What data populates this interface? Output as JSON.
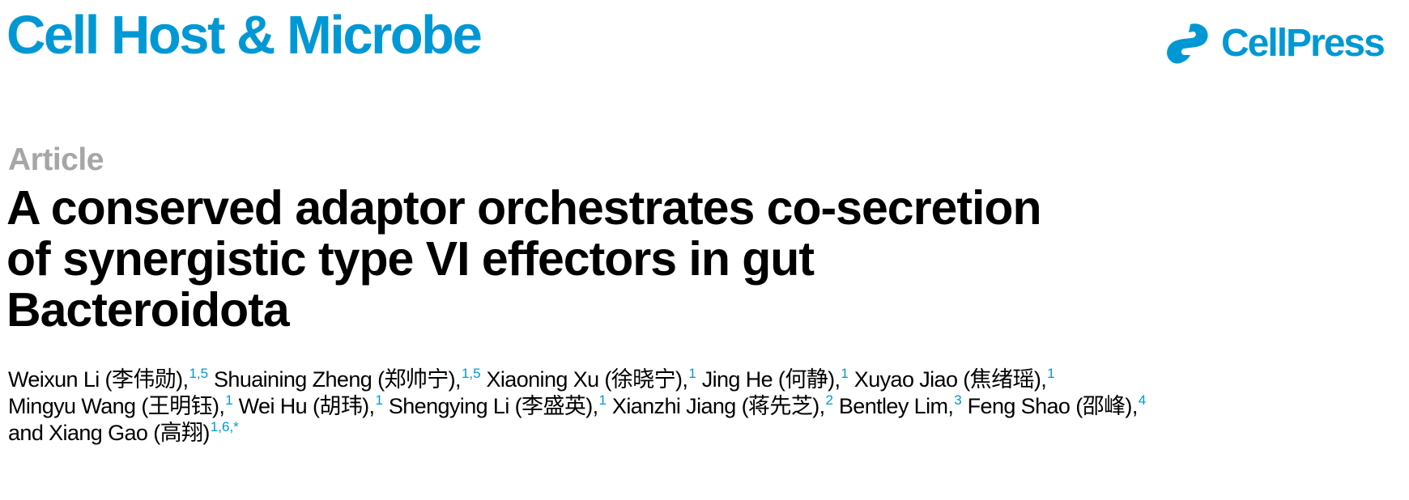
{
  "header": {
    "journal": "Cell Host & Microbe",
    "publisher": "CellPress",
    "brand_color": "#0098d4",
    "logo_icon": "cellpress-logo-icon"
  },
  "article": {
    "type": "Article",
    "title_lines": [
      "A conserved adaptor orchestrates co-secretion",
      "of synergistic type VI effectors in gut",
      "Bacteroidota"
    ]
  },
  "authors": [
    {
      "name": "Weixun Li (李伟勋),",
      "aff": "1,5"
    },
    {
      "name": "Shuaining Zheng (郑帅宁),",
      "aff": "1,5"
    },
    {
      "name": "Xiaoning Xu (徐晓宁),",
      "aff": "1"
    },
    {
      "name": "Jing He (何静),",
      "aff": "1"
    },
    {
      "name": "Xuyao Jiao (焦绪瑶),",
      "aff": "1"
    },
    {
      "name": "Mingyu Wang (王明钰),",
      "aff": "1"
    },
    {
      "name": "Wei Hu (胡玮),",
      "aff": "1"
    },
    {
      "name": "Shengying Li (李盛英),",
      "aff": "1"
    },
    {
      "name": "Xianzhi Jiang (蒋先芝),",
      "aff": "2"
    },
    {
      "name": "Bentley Lim,",
      "aff": "3"
    },
    {
      "name": "Feng Shao (邵峰),",
      "aff": "4"
    },
    {
      "name": "and Xiang Gao (高翔)",
      "aff": "1,6,*"
    }
  ]
}
